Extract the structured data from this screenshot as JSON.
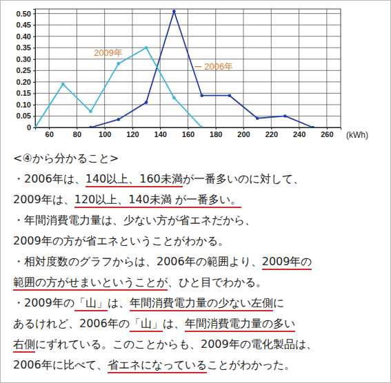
{
  "chart_data": {
    "type": "line",
    "x_label": "(kWh)",
    "xlim": [
      50,
      270
    ],
    "xticks": [
      60,
      80,
      100,
      120,
      140,
      160,
      180,
      200,
      220,
      240,
      260
    ],
    "ylim": [
      0,
      0.52
    ],
    "yticks": [
      0,
      0.05,
      {
        "value": 0.1,
        "label": "0.10"
      },
      0.15,
      {
        "value": 0.2,
        "label": "0.20"
      },
      0.25,
      {
        "value": 0.3,
        "label": "0.30"
      },
      0.35,
      {
        "value": 0.4,
        "label": "0.40"
      },
      0.45,
      {
        "value": 0.5,
        "label": "0.50"
      }
    ],
    "grid": true,
    "marker": "circle",
    "series": [
      {
        "name": "2006年",
        "color": "#1f3ea8",
        "x": [
          90,
          110,
          130,
          150,
          170,
          190,
          210,
          230,
          250
        ],
        "values": [
          0,
          0.035,
          0.11,
          0.51,
          0.14,
          0.14,
          0.04,
          0.05,
          0
        ]
      },
      {
        "name": "2009年",
        "color": "#38b6e0",
        "x": [
          50,
          70,
          90,
          110,
          130,
          150,
          170
        ],
        "values": [
          0,
          0.19,
          0.07,
          0.28,
          0.35,
          0.13,
          0
        ]
      }
    ]
  },
  "notes": {
    "heading": "<④から分かること>",
    "lines": [
      [
        {
          "text": "・2006年は、",
          "underline": false
        },
        {
          "text": "140以上、160未満",
          "underline": true
        },
        {
          "text": "が一番多いのに対して、",
          "underline": false
        }
      ],
      [
        {
          "text": "2009年は、",
          "underline": false
        },
        {
          "text": "120以上、140未満 が一番多い。",
          "underline": true
        }
      ],
      [
        {
          "text": "・年間消費電力量は、少ない方が省エネだから、",
          "underline": false
        }
      ],
      [
        {
          "text": "2009年の方が省エネということがわかる。",
          "underline": false
        }
      ],
      [
        {
          "text": "・相対度数のグラフからは、2006年の範囲より、",
          "underline": false
        },
        {
          "text": "2009年の",
          "underline": true
        }
      ],
      [
        {
          "text": "範囲の方がせまいということが",
          "underline": true
        },
        {
          "text": "、ひと目でわかる。",
          "underline": false
        }
      ],
      [
        {
          "text": "・2009年の",
          "underline": false
        },
        {
          "text": "「山」",
          "underline": true
        },
        {
          "text": "は、",
          "underline": false
        },
        {
          "text": "年間消費電力量の少ない左側",
          "underline": true
        },
        {
          "text": "に",
          "underline": false
        }
      ],
      [
        {
          "text": "あるけれど、2006年の",
          "underline": false
        },
        {
          "text": "「山」",
          "underline": true
        },
        {
          "text": "は、",
          "underline": false
        },
        {
          "text": "年間消費電力量の多い",
          "underline": true
        }
      ],
      [
        {
          "text": "右側",
          "underline": true
        },
        {
          "text": "にずれている。このことからも、2009年の電化製品は、",
          "underline": false
        }
      ],
      [
        {
          "text": "2006年に比べて、",
          "underline": false
        },
        {
          "text": "省エネになっている",
          "underline": true
        },
        {
          "text": "ことがわかった。",
          "underline": false
        }
      ]
    ]
  }
}
